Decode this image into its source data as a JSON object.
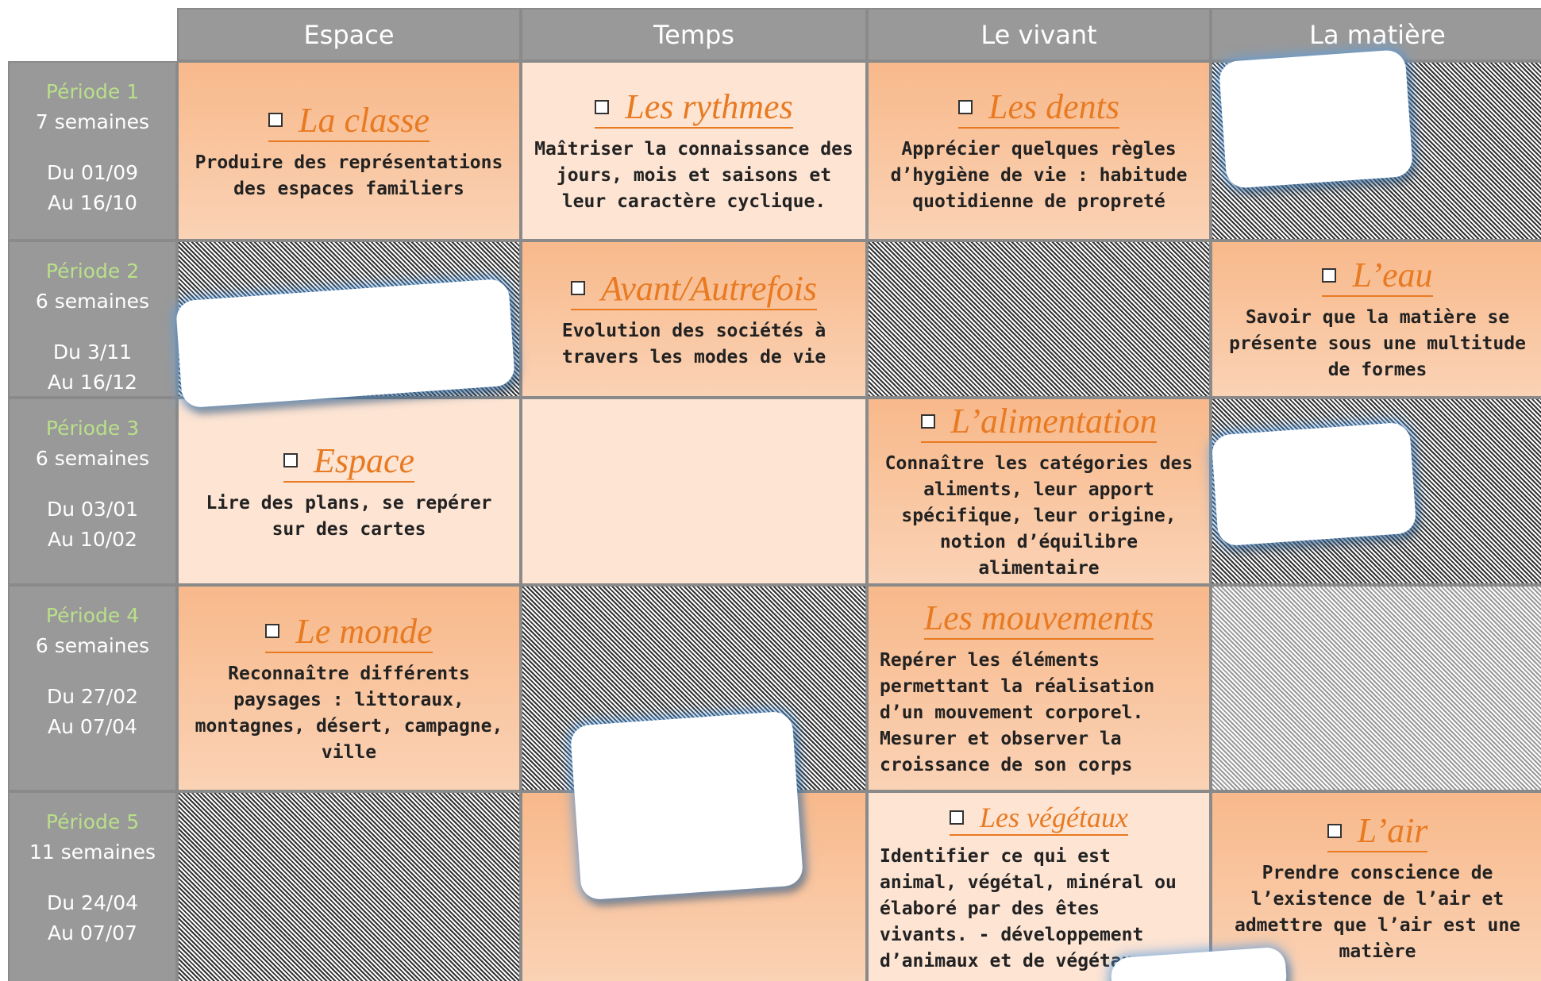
{
  "header": {
    "columns": [
      "Espace",
      "Temps",
      "Le vivant",
      "La matière"
    ]
  },
  "periods": [
    {
      "label": "Période 1",
      "weeks": "7 semaines",
      "from": "Du 01/09",
      "to": "Au 16/10"
    },
    {
      "label": "Période 2",
      "weeks": "6 semaines",
      "from": "Du 3/11",
      "to": "Au 16/12"
    },
    {
      "label": "Période 3",
      "weeks": "6 semaines",
      "from": "Du 03/01",
      "to": "Au 10/02"
    },
    {
      "label": "Période 4",
      "weeks": "6 semaines",
      "from": "Du 27/02",
      "to": "Au 07/04"
    },
    {
      "label": "Période 5",
      "weeks": "11 semaines",
      "from": "Du 24/04",
      "to": "Au 07/07"
    }
  ],
  "rows": [
    [
      {
        "title": "La classe",
        "text": "Produire des représentations des espaces familiers"
      },
      {
        "title": "Les rythmes",
        "text": "Maîtriser la connaissance des jours, mois et saisons et leur caractère cyclique."
      },
      {
        "title": "Les dents",
        "text": "Apprécier quelques règles d’hygiène de vie : habitude quotidienne de propreté"
      },
      null
    ],
    [
      null,
      {
        "title": "Avant/Autrefois",
        "text": "Evolution des sociétés à travers les modes de vie"
      },
      null,
      {
        "title": "L’eau",
        "text": "Savoir que la matière se présente sous une multitude de formes"
      }
    ],
    [
      {
        "title": "Espace",
        "text": "Lire des plans, se repérer sur des cartes"
      },
      null,
      {
        "title": "L’alimentation",
        "text": "Connaître les catégories des aliments, leur apport spécifique, leur origine, notion d’équilibre alimentaire"
      },
      null
    ],
    [
      {
        "title": "Le monde",
        "text": "Reconnaître différents paysages : littoraux, montagnes, désert, campagne, ville"
      },
      null,
      {
        "title": "Les mouvements",
        "text": "Repérer les éléments permettant la réalisation d’un mouvement corporel. Mesurer et observer la croissance de son corps"
      },
      null
    ],
    [
      null,
      null,
      {
        "title": "Les végétaux",
        "text": "Identifier ce qui est animal, végétal, minéral ou élaboré par des êtes vivants. - développement d’animaux et de végétaux"
      },
      {
        "title": "L’air",
        "text": "Prendre conscience de l’existence de l’air et admettre que l’air est une matière"
      }
    ]
  ]
}
